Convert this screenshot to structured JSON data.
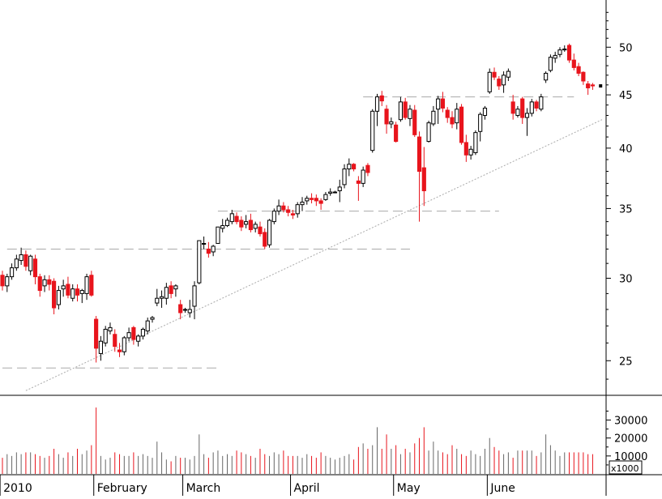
{
  "chart_data": {
    "type": "candlestick",
    "price_axis": {
      "scale": "log",
      "ylim": [
        23.2,
        55.5
      ],
      "ticks": [
        25,
        30,
        35,
        40,
        45,
        50
      ],
      "tick_labels": [
        "25",
        "30",
        "35",
        "40",
        "45",
        "50"
      ],
      "position": "right"
    },
    "volume_axis": {
      "ylim": [
        0,
        42000
      ],
      "ticks": [
        10000,
        20000,
        30000
      ],
      "tick_labels": [
        "10000",
        "20000",
        "30000"
      ],
      "unit_label": "x1000",
      "position": "right"
    },
    "x_axis": {
      "sessions": 128,
      "month_labels": [
        {
          "label": "2010",
          "index": 0
        },
        {
          "label": "February",
          "index": 20
        },
        {
          "label": "March",
          "index": 39
        },
        {
          "label": "April",
          "index": 62
        },
        {
          "label": "May",
          "index": 84
        },
        {
          "label": "June",
          "index": 104
        }
      ]
    },
    "colors": {
      "up_body": "#ffffff",
      "down_body": "#e8141c",
      "wick": "#000000",
      "volume_up": "#666666",
      "volume_down": "#e8141c",
      "support_line": "#aaaaaa",
      "trend_line": "#aaaaaa"
    },
    "support_lines": [
      {
        "price": 24.6,
        "from": 0,
        "to": 46
      },
      {
        "price": 32.0,
        "from": 1,
        "to": 87
      },
      {
        "price": 34.8,
        "from": 46,
        "to": 106
      },
      {
        "price": 44.8,
        "from": 77,
        "to": 122
      }
    ],
    "trend_line": {
      "from": [
        5,
        23.4
      ],
      "to": [
        128,
        42.6
      ]
    },
    "candles": [
      [
        30.2,
        30.5,
        29.2,
        29.5,
        9000
      ],
      [
        29.5,
        30.3,
        29.1,
        30.1,
        11000
      ],
      [
        30.1,
        31.0,
        29.9,
        30.7,
        10000
      ],
      [
        30.7,
        31.6,
        30.5,
        31.3,
        12000
      ],
      [
        31.2,
        32.1,
        30.9,
        31.6,
        11000
      ],
      [
        31.6,
        31.9,
        30.5,
        30.8,
        12000
      ],
      [
        30.5,
        31.6,
        30.2,
        31.5,
        12000
      ],
      [
        31.3,
        31.6,
        29.6,
        30.1,
        11000
      ],
      [
        30.1,
        30.3,
        28.8,
        29.2,
        10000
      ],
      [
        29.5,
        30.2,
        29.1,
        29.9,
        9000
      ],
      [
        29.9,
        30.2,
        29.2,
        29.6,
        10000
      ],
      [
        29.8,
        30.0,
        27.7,
        28.1,
        14000
      ],
      [
        28.3,
        29.5,
        28.0,
        29.2,
        11000
      ],
      [
        29.3,
        29.9,
        28.8,
        29.5,
        9000
      ],
      [
        29.6,
        30.1,
        28.7,
        28.9,
        12000
      ],
      [
        28.7,
        29.6,
        28.5,
        29.3,
        10000
      ],
      [
        29.3,
        29.6,
        28.5,
        28.9,
        14000
      ],
      [
        29.0,
        29.3,
        28.4,
        29.2,
        11000
      ],
      [
        29.0,
        30.3,
        28.6,
        30.1,
        13000
      ],
      [
        30.2,
        30.5,
        28.8,
        28.9,
        16000
      ],
      [
        27.4,
        27.6,
        24.9,
        25.7,
        37000
      ],
      [
        25.4,
        26.4,
        25.0,
        26.1,
        10000
      ],
      [
        26.0,
        27.0,
        25.8,
        26.8,
        8000
      ],
      [
        26.7,
        27.2,
        26.5,
        26.9,
        9000
      ],
      [
        26.5,
        26.8,
        25.5,
        25.8,
        12000
      ],
      [
        25.6,
        26.0,
        25.2,
        25.5,
        11000
      ],
      [
        25.5,
        26.4,
        25.3,
        26.3,
        10000
      ],
      [
        26.3,
        26.9,
        26.1,
        26.6,
        10000
      ],
      [
        26.9,
        27.0,
        25.9,
        26.2,
        12000
      ],
      [
        26.1,
        26.5,
        25.8,
        26.4,
        10000
      ],
      [
        26.4,
        26.9,
        26.2,
        26.8,
        11000
      ],
      [
        26.7,
        27.5,
        26.5,
        27.3,
        10000
      ],
      [
        27.4,
        27.6,
        27.2,
        27.5,
        9000
      ],
      [
        28.4,
        29.3,
        28.2,
        28.7,
        18000
      ],
      [
        28.7,
        29.2,
        28.1,
        28.8,
        12000
      ],
      [
        28.7,
        29.7,
        28.3,
        29.4,
        8000
      ],
      [
        29.5,
        29.8,
        28.7,
        29.0,
        7000
      ],
      [
        29.3,
        29.6,
        28.8,
        29.5,
        10000
      ],
      [
        28.3,
        28.6,
        27.4,
        27.8,
        9000
      ],
      [
        28.0,
        28.1,
        27.8,
        28.0,
        9000
      ],
      [
        27.8,
        28.6,
        27.5,
        28.0,
        8000
      ],
      [
        28.2,
        29.8,
        27.4,
        29.5,
        10000
      ],
      [
        29.7,
        32.6,
        29.6,
        32.6,
        22000
      ],
      [
        32.4,
        32.9,
        32.0,
        32.4,
        11000
      ],
      [
        32.0,
        32.5,
        31.4,
        31.7,
        9000
      ],
      [
        31.8,
        32.3,
        31.5,
        32.2,
        12000
      ],
      [
        32.4,
        33.6,
        32.4,
        33.6,
        13000
      ],
      [
        33.5,
        34.2,
        33.2,
        33.7,
        10000
      ],
      [
        33.7,
        34.3,
        33.6,
        34.1,
        11000
      ],
      [
        34.0,
        34.9,
        33.8,
        34.6,
        10000
      ],
      [
        34.4,
        34.7,
        33.8,
        34.0,
        13000
      ],
      [
        34.1,
        34.4,
        33.3,
        33.6,
        12000
      ],
      [
        33.8,
        34.5,
        33.5,
        34.0,
        11000
      ],
      [
        34.1,
        34.6,
        33.2,
        33.4,
        10000
      ],
      [
        33.5,
        34.0,
        33.2,
        33.8,
        9000
      ],
      [
        33.6,
        34.0,
        32.9,
        33.1,
        14000
      ],
      [
        33.2,
        33.5,
        32.0,
        32.2,
        11000
      ],
      [
        32.3,
        34.2,
        32.1,
        34.1,
        10000
      ],
      [
        34.0,
        35.0,
        33.8,
        34.8,
        12000
      ],
      [
        34.8,
        35.7,
        34.5,
        35.2,
        11000
      ],
      [
        35.2,
        35.5,
        34.7,
        34.9,
        13000
      ],
      [
        34.9,
        35.2,
        34.4,
        34.7,
        10000
      ],
      [
        34.6,
        34.9,
        34.2,
        34.5,
        10000
      ],
      [
        34.6,
        35.5,
        34.3,
        35.3,
        10000
      ],
      [
        35.3,
        35.9,
        34.8,
        35.5,
        9000
      ],
      [
        35.6,
        36.0,
        35.3,
        35.8,
        11000
      ],
      [
        35.8,
        36.2,
        35.4,
        35.7,
        10000
      ],
      [
        35.8,
        36.1,
        35.2,
        35.6,
        9000
      ],
      [
        35.6,
        35.8,
        34.9,
        35.4,
        12000
      ],
      [
        35.7,
        36.3,
        35.6,
        36.1,
        10000
      ],
      [
        36.2,
        36.6,
        36.0,
        36.3,
        9000
      ],
      [
        36.3,
        36.4,
        36.2,
        36.3,
        8000
      ],
      [
        36.4,
        37.3,
        35.5,
        36.7,
        9000
      ],
      [
        36.9,
        38.6,
        36.6,
        38.2,
        10000
      ],
      [
        38.2,
        39.1,
        37.6,
        38.6,
        11000
      ],
      [
        38.6,
        38.7,
        38.0,
        38.2,
        8000
      ],
      [
        37.2,
        37.6,
        35.6,
        37.0,
        15000
      ],
      [
        37.0,
        38.4,
        36.7,
        38.1,
        17000
      ],
      [
        38.5,
        38.7,
        37.6,
        37.9,
        14000
      ],
      [
        39.8,
        43.6,
        39.6,
        43.4,
        16000
      ],
      [
        43.4,
        45.1,
        42.0,
        44.8,
        26000
      ],
      [
        44.9,
        45.4,
        43.9,
        44.4,
        14000
      ],
      [
        43.6,
        44.0,
        41.3,
        42.2,
        22000
      ],
      [
        42.2,
        42.8,
        41.8,
        42.4,
        14000
      ],
      [
        42.1,
        42.4,
        40.5,
        40.6,
        16000
      ],
      [
        42.6,
        44.8,
        42.4,
        44.3,
        11000
      ],
      [
        44.3,
        44.7,
        42.6,
        42.8,
        14000
      ],
      [
        42.7,
        44.0,
        42.0,
        43.6,
        12000
      ],
      [
        43.5,
        44.0,
        41.0,
        41.2,
        17000
      ],
      [
        41.0,
        41.5,
        34.0,
        38.0,
        20000
      ],
      [
        38.3,
        40.1,
        35.2,
        36.4,
        26000
      ],
      [
        40.6,
        42.5,
        40.5,
        42.3,
        13000
      ],
      [
        42.2,
        43.9,
        42.0,
        43.4,
        18000
      ],
      [
        43.6,
        44.9,
        42.2,
        44.6,
        13000
      ],
      [
        44.6,
        45.3,
        43.3,
        43.7,
        12000
      ],
      [
        43.5,
        43.8,
        42.3,
        42.8,
        11000
      ],
      [
        42.8,
        43.4,
        41.8,
        42.2,
        16000
      ],
      [
        42.3,
        44.2,
        41.7,
        43.6,
        14000
      ],
      [
        43.8,
        44.1,
        40.3,
        40.5,
        11000
      ],
      [
        40.5,
        41.2,
        38.8,
        39.4,
        10000
      ],
      [
        39.4,
        40.2,
        39.0,
        39.9,
        13000
      ],
      [
        39.6,
        41.6,
        39.4,
        41.4,
        11000
      ],
      [
        41.5,
        43.3,
        40.6,
        43.1,
        10000
      ],
      [
        43.0,
        43.9,
        42.6,
        43.7,
        14000
      ],
      [
        45.3,
        47.7,
        45.1,
        47.3,
        20000
      ],
      [
        47.3,
        47.8,
        46.5,
        46.8,
        15000
      ],
      [
        46.6,
        46.9,
        45.5,
        45.9,
        13000
      ],
      [
        46.0,
        47.4,
        45.2,
        47.0,
        11000
      ],
      [
        46.8,
        47.7,
        46.4,
        47.4,
        12000
      ],
      [
        44.3,
        45.0,
        42.6,
        43.2,
        9000
      ],
      [
        43.0,
        43.9,
        42.8,
        43.6,
        13000
      ],
      [
        44.6,
        44.8,
        42.2,
        42.8,
        13000
      ],
      [
        42.8,
        43.7,
        41.1,
        43.2,
        13000
      ],
      [
        43.2,
        44.6,
        42.9,
        44.3,
        13000
      ],
      [
        44.3,
        44.5,
        43.4,
        43.7,
        10000
      ],
      [
        43.6,
        45.1,
        43.4,
        44.8,
        12000
      ],
      [
        46.5,
        47.4,
        46.2,
        47.2,
        22000
      ],
      [
        47.5,
        49.2,
        47.3,
        48.9,
        16000
      ],
      [
        48.8,
        49.5,
        48.3,
        49.1,
        13000
      ],
      [
        49.2,
        50.0,
        48.9,
        49.7,
        10000
      ],
      [
        49.7,
        50.2,
        49.5,
        49.8,
        12000
      ],
      [
        50.2,
        50.4,
        48.3,
        48.6,
        12000
      ],
      [
        48.6,
        49.3,
        47.5,
        47.8,
        12000
      ],
      [
        47.9,
        48.3,
        46.9,
        47.2,
        12000
      ],
      [
        47.3,
        47.4,
        46.0,
        46.4,
        12000
      ],
      [
        46.1,
        46.4,
        45.0,
        45.7,
        11000
      ],
      [
        46.0,
        46.2,
        45.5,
        45.9,
        11000
      ]
    ]
  }
}
